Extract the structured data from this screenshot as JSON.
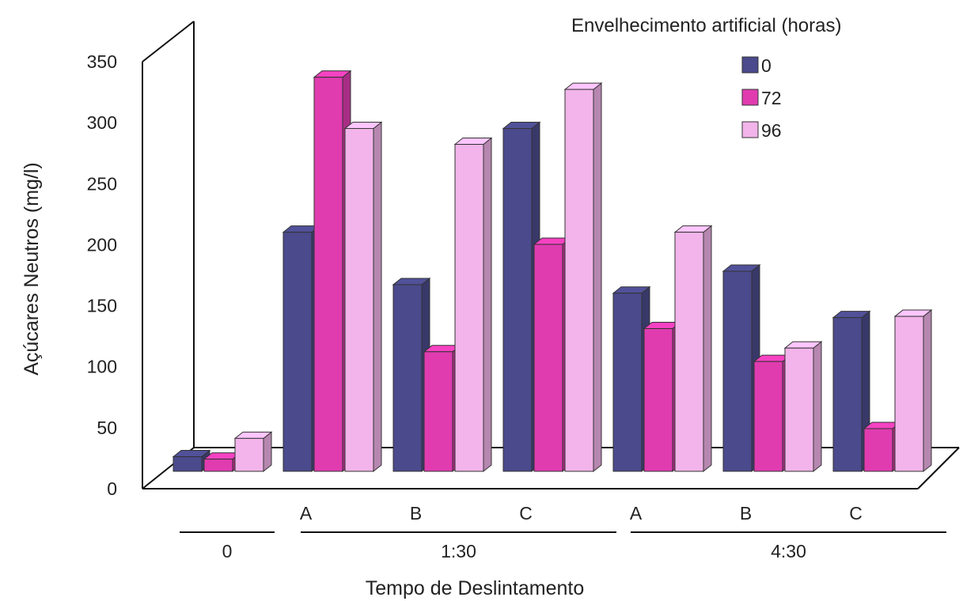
{
  "chart_data": {
    "type": "bar",
    "legend_title": "Envelhecimento artificial (horas)",
    "xlabel": "Tempo de Deslintamento",
    "ylabel": "Açúcares Neutros (mg/l)",
    "ylim": [
      0,
      350
    ],
    "yticks": [
      "0",
      "50",
      "100",
      "150",
      "200",
      "250",
      "300",
      "350"
    ],
    "grid": false,
    "legend_position": "top-right",
    "categories": [
      "",
      "A",
      "B",
      "C",
      "A",
      "B",
      "C"
    ],
    "groups": [
      {
        "label": "0",
        "categories": [
          0
        ]
      },
      {
        "label": "1:30",
        "categories": [
          1,
          2,
          3
        ]
      },
      {
        "label": "4:30",
        "categories": [
          4,
          5,
          6
        ]
      }
    ],
    "series": [
      {
        "name": "0",
        "color": "#4a4a8c",
        "values": [
          12,
          196,
          153,
          281,
          146,
          164,
          126
        ]
      },
      {
        "name": "72",
        "color": "#e03cb0",
        "values": [
          10,
          323,
          98,
          186,
          117,
          90,
          35
        ]
      },
      {
        "name": "96",
        "color": "#f2b4ea",
        "values": [
          27,
          281,
          268,
          313,
          196,
          101,
          127
        ]
      }
    ]
  }
}
